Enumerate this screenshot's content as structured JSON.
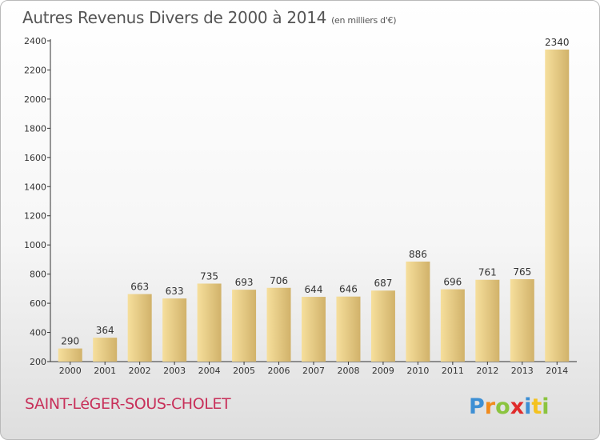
{
  "header": {
    "title": "Autres Revenus Divers de 2000 à 2014",
    "unit": "(en milliers d'€)"
  },
  "footer": {
    "commune": "SAINT-LéGER-SOUS-CHOLET",
    "logo_text": "Proxiti"
  },
  "colors": {
    "bar_light": "#f6df9c",
    "bar_dark": "#d1b26a",
    "commune": "#c8305a",
    "title": "#555555"
  },
  "chart_data": {
    "type": "bar",
    "title": "Autres Revenus Divers de 2000 à 2014",
    "subtitle": "(en milliers d'€)",
    "categories": [
      "2000",
      "2001",
      "2002",
      "2003",
      "2004",
      "2005",
      "2006",
      "2007",
      "2008",
      "2009",
      "2010",
      "2011",
      "2012",
      "2013",
      "2014"
    ],
    "values": [
      290,
      364,
      663,
      633,
      735,
      693,
      706,
      644,
      646,
      687,
      886,
      696,
      761,
      765,
      2340
    ],
    "ylim": [
      200,
      2400
    ],
    "yticks": [
      200,
      400,
      600,
      800,
      1000,
      1200,
      1400,
      1600,
      1800,
      2000,
      2200,
      2400
    ],
    "data_labels": true,
    "grid": false,
    "xlabel": "",
    "ylabel": ""
  }
}
